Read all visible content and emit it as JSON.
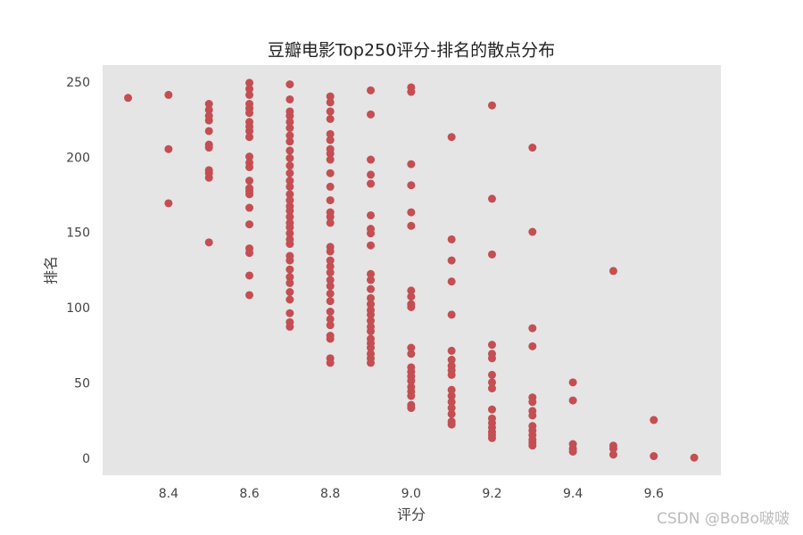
{
  "chart_data": {
    "type": "scatter",
    "title": "豆瓣电影Top250评分-排名的散点分布",
    "x_label": "评分",
    "y_label": "排名",
    "watermark": "CSDN @BoBo啵啵",
    "color": "#c44e52",
    "xlim": [
      8.237,
      9.766
    ],
    "ylim": [
      -10.7,
      261.8
    ],
    "xticks": [
      8.4,
      8.6,
      8.8,
      {
        "value": 9,
        "label": "9.0"
      },
      9.2,
      9.4,
      9.6
    ],
    "yticks": [
      0,
      50,
      100,
      150,
      200,
      250
    ],
    "x": [
      8.3,
      8.4,
      8.4,
      8.4,
      8.5,
      8.5,
      8.5,
      8.5,
      8.5,
      8.5,
      8.5,
      8.5,
      8.5,
      8.5,
      8.5,
      8.6,
      8.6,
      8.6,
      8.6,
      8.6,
      8.6,
      8.6,
      8.6,
      8.6,
      8.6,
      8.6,
      8.6,
      8.6,
      8.6,
      8.6,
      8.6,
      8.6,
      8.6,
      8.6,
      8.6,
      8.6,
      8.6,
      8.6,
      8.7,
      8.7,
      8.7,
      8.7,
      8.7,
      8.7,
      8.7,
      8.7,
      8.7,
      8.7,
      8.7,
      8.7,
      8.7,
      8.7,
      8.7,
      8.7,
      8.7,
      8.7,
      8.7,
      8.7,
      8.7,
      8.7,
      8.7,
      8.7,
      8.7,
      8.7,
      8.7,
      8.7,
      8.7,
      8.7,
      8.7,
      8.7,
      8.7,
      8.7,
      8.8,
      8.8,
      8.8,
      8.8,
      8.8,
      8.8,
      8.8,
      8.8,
      8.8,
      8.8,
      8.8,
      8.8,
      8.8,
      8.8,
      8.8,
      8.8,
      8.8,
      8.8,
      8.8,
      8.8,
      8.8,
      8.8,
      8.8,
      8.8,
      8.8,
      8.8,
      8.8,
      8.8,
      8.8,
      8.8,
      8.8,
      8.9,
      8.9,
      8.9,
      8.9,
      8.9,
      8.9,
      8.9,
      8.9,
      8.9,
      8.9,
      8.9,
      8.9,
      8.9,
      8.9,
      8.9,
      8.9,
      8.9,
      8.9,
      8.9,
      8.9,
      8.9,
      8.9,
      8.9,
      8.9,
      8.9,
      9.0,
      9.0,
      9.0,
      9.0,
      9.0,
      9.0,
      9.0,
      9.0,
      9.0,
      9.0,
      9.0,
      9.0,
      9.0,
      9.0,
      9.0,
      9.0,
      9.0,
      9.0,
      9.0,
      9.0,
      9.0,
      9.1,
      9.1,
      9.1,
      9.1,
      9.1,
      9.1,
      9.1,
      9.1,
      9.1,
      9.1,
      9.1,
      9.1,
      9.1,
      9.1,
      9.1,
      9.1,
      9.1,
      9.2,
      9.2,
      9.2,
      9.2,
      9.2,
      9.2,
      9.2,
      9.2,
      9.2,
      9.2,
      9.2,
      9.2,
      9.2,
      9.2,
      9.2,
      9.2,
      9.3,
      9.3,
      9.3,
      9.3,
      9.3,
      9.3,
      9.3,
      9.3,
      9.3,
      9.3,
      9.3,
      9.3,
      9.3,
      9.3,
      9.4,
      9.4,
      9.4,
      9.4,
      9.4,
      9.5,
      9.5,
      9.5,
      9.5,
      9.6,
      9.6,
      9.7
    ],
    "values": [
      240,
      242,
      206,
      170,
      236,
      232,
      228,
      225,
      218,
      209,
      207,
      192,
      190,
      187,
      144,
      250,
      246,
      242,
      236,
      233,
      230,
      224,
      221,
      218,
      214,
      201,
      197,
      194,
      185,
      180,
      178,
      176,
      167,
      156,
      140,
      137,
      122,
      109,
      249,
      239,
      231,
      228,
      224,
      220,
      215,
      211,
      205,
      200,
      195,
      190,
      185,
      181,
      176,
      172,
      168,
      165,
      161,
      157,
      154,
      150,
      146,
      143,
      135,
      132,
      126,
      121,
      117,
      111,
      106,
      97,
      91,
      88,
      241,
      237,
      231,
      226,
      216,
      212,
      206,
      203,
      199,
      190,
      181,
      172,
      164,
      161,
      157,
      141,
      138,
      132,
      128,
      124,
      119,
      115,
      110,
      105,
      98,
      93,
      89,
      82,
      80,
      67,
      64,
      245,
      229,
      199,
      189,
      183,
      162,
      153,
      150,
      142,
      123,
      119,
      113,
      107,
      103,
      99,
      96,
      92,
      88,
      85,
      80,
      77,
      74,
      70,
      67,
      64,
      247,
      244,
      196,
      182,
      164,
      155,
      112,
      108,
      103,
      101,
      74,
      70,
      61,
      58,
      55,
      52,
      48,
      45,
      42,
      36,
      34,
      214,
      146,
      132,
      118,
      96,
      72,
      66,
      62,
      59,
      56,
      46,
      42,
      38,
      34,
      30,
      25,
      23,
      235,
      173,
      136,
      76,
      70,
      67,
      56,
      51,
      47,
      33,
      27,
      24,
      21,
      18,
      16,
      14,
      207,
      151,
      87,
      75,
      41,
      38,
      32,
      29,
      22,
      19,
      16,
      13,
      11,
      9,
      51,
      39,
      10,
      7,
      5,
      125,
      9,
      7,
      3,
      26,
      2,
      1
    ]
  }
}
